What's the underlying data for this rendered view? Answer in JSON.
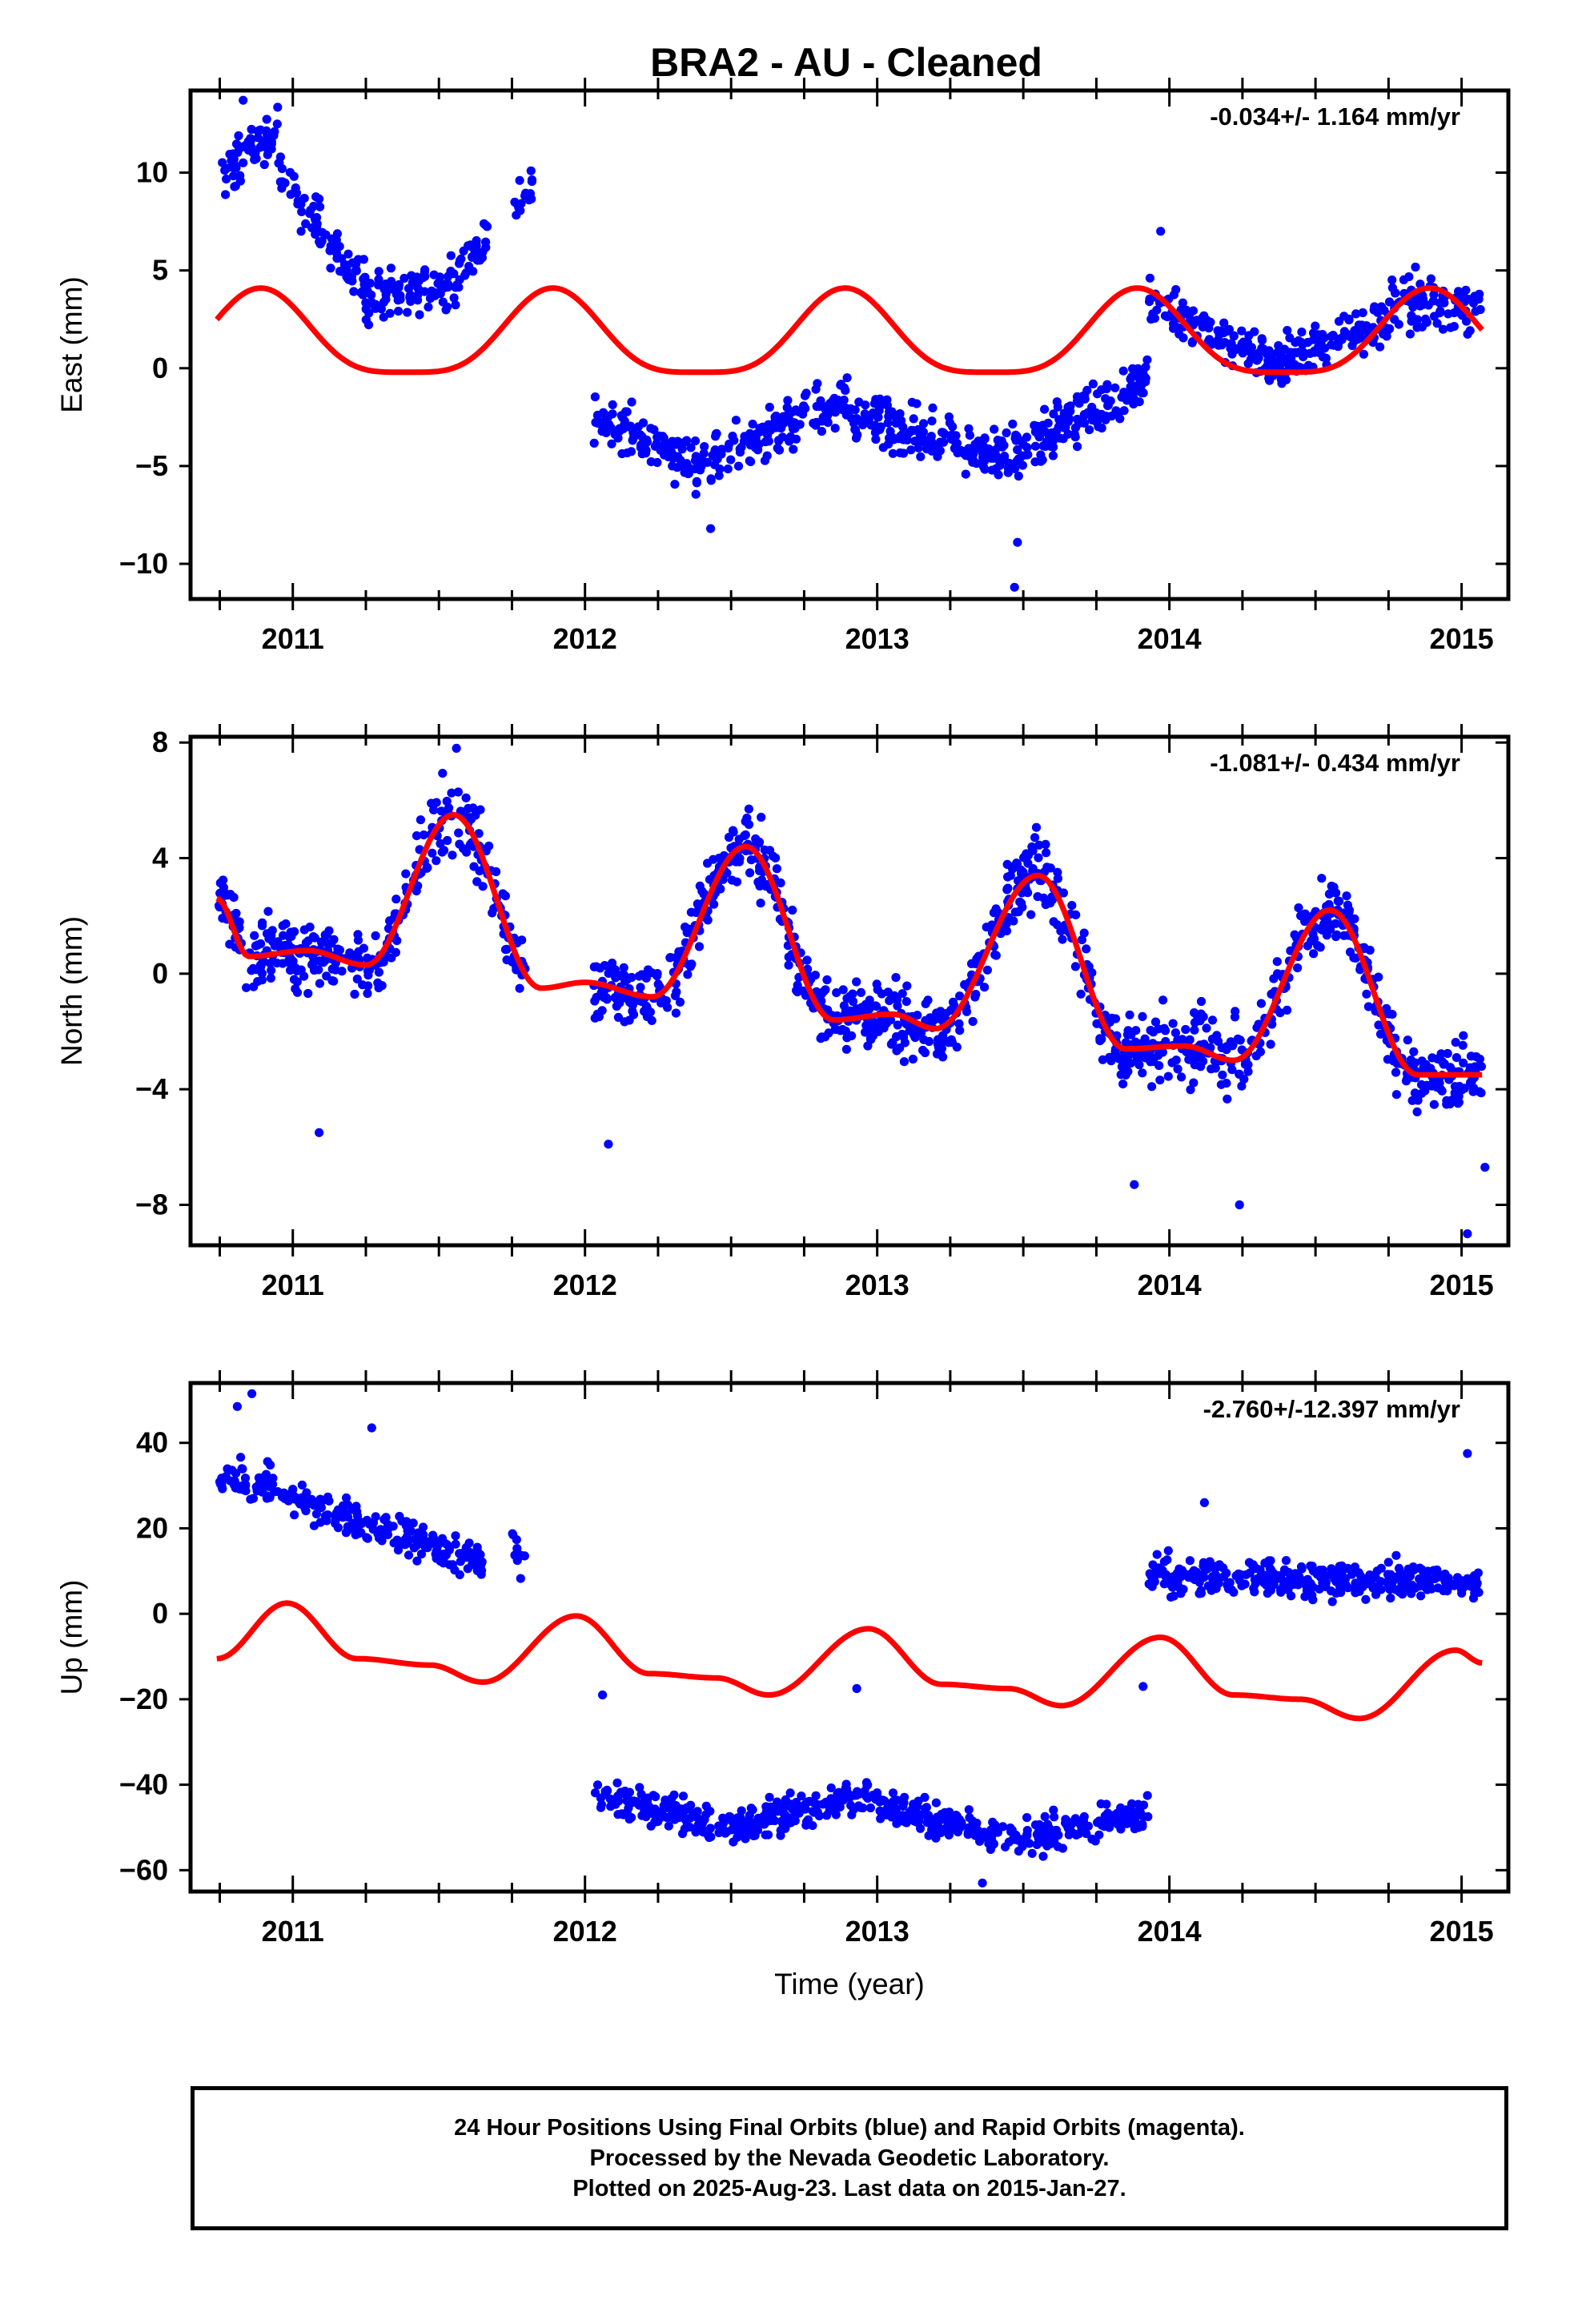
{
  "title": "BRA2  - AU - Cleaned",
  "chart_data": [
    {
      "type": "scatter",
      "panel": "east",
      "ylabel": "East (mm)",
      "xlabel": "",
      "annotation": "-0.034+/- 1.164 mm/yr",
      "xlim": [
        2010.65,
        2015.16
      ],
      "ylim": [
        -11.8,
        14.2
      ],
      "yticks": [
        -10,
        -5,
        0,
        5,
        10
      ],
      "xticks": [
        2011,
        2012,
        2013,
        2014,
        2015
      ],
      "grid": false,
      "colors": {
        "points": "#0000ff",
        "model": "#ff0000"
      },
      "model": {
        "amp1": 2.15,
        "amp2": 0.55,
        "offsets": [
          [
            2010.75,
            1.4
          ],
          [
            2011.05,
            1.4
          ],
          [
            2012.05,
            1.4
          ],
          [
            2013.05,
            1.4
          ],
          [
            2014.05,
            1.4
          ],
          [
            2015.08,
            1.4
          ]
        ]
      },
      "segments": [
        {
          "x0": 2010.75,
          "x1": 2010.95,
          "y0": 9.5,
          "y1": 12.5,
          "n": 60
        },
        {
          "x0": 2010.95,
          "x1": 2011.25,
          "y0": 10.0,
          "y1": 4.0,
          "n": 80
        },
        {
          "x0": 2011.25,
          "x1": 2011.55,
          "y0": 3.5,
          "y1": 4.5,
          "n": 80
        },
        {
          "x0": 2011.55,
          "x1": 2011.67,
          "y0": 4.5,
          "y1": 7.0,
          "n": 35
        },
        {
          "x0": 2011.75,
          "x1": 2011.82,
          "y0": 8.0,
          "y1": 9.5,
          "n": 15
        },
        {
          "x0": 2012.03,
          "x1": 2012.4,
          "y0": -2.5,
          "y1": -5.0,
          "n": 110
        },
        {
          "x0": 2012.4,
          "x1": 2012.9,
          "y0": -5.0,
          "y1": -1.5,
          "n": 150
        },
        {
          "x0": 2012.9,
          "x1": 2013.45,
          "y0": -2.5,
          "y1": -4.5,
          "n": 170
        },
        {
          "x0": 2013.45,
          "x1": 2013.93,
          "y0": -4.5,
          "y1": -0.5,
          "n": 150
        },
        {
          "x0": 2013.93,
          "x1": 2014.4,
          "y0": 3.5,
          "y1": 0.0,
          "n": 140
        },
        {
          "x0": 2014.4,
          "x1": 2014.75,
          "y0": 0.5,
          "y1": 2.5,
          "n": 110
        },
        {
          "x0": 2014.75,
          "x1": 2015.07,
          "y0": 3.5,
          "y1": 3.0,
          "n": 100
        }
      ],
      "noise": 1.05,
      "outliers": [
        [
          2013.47,
          -11.2
        ],
        [
          2013.48,
          -8.9
        ],
        [
          2012.43,
          -8.2
        ],
        [
          2013.97,
          7.0
        ],
        [
          2010.83,
          13.7
        ],
        [
          2011.03,
          8.0
        ]
      ]
    },
    {
      "type": "scatter",
      "panel": "north",
      "ylabel": "North (mm)",
      "xlabel": "",
      "annotation": "-1.081+/- 0.434 mm/yr",
      "xlim": [
        2010.65,
        2015.16
      ],
      "ylim": [
        -9.4,
        8.2
      ],
      "yticks": [
        -8,
        -4,
        0,
        4,
        8
      ],
      "xticks": [
        2011,
        2012,
        2013,
        2014,
        2015
      ],
      "grid": false,
      "colors": {
        "points": "#0000ff",
        "model": "#ff0000"
      },
      "curve_knots": [
        [
          2010.74,
          2.6
        ],
        [
          2010.85,
          0.6
        ],
        [
          2011.05,
          0.8
        ],
        [
          2011.25,
          0.3
        ],
        [
          2011.55,
          5.5
        ],
        [
          2011.85,
          -0.5
        ],
        [
          2012.0,
          -0.3
        ],
        [
          2012.23,
          -0.8
        ],
        [
          2012.55,
          4.4
        ],
        [
          2012.85,
          -1.6
        ],
        [
          2013.05,
          -1.4
        ],
        [
          2013.2,
          -1.9
        ],
        [
          2013.55,
          3.4
        ],
        [
          2013.85,
          -2.6
        ],
        [
          2014.05,
          -2.5
        ],
        [
          2014.22,
          -3.0
        ],
        [
          2014.55,
          2.2
        ],
        [
          2014.85,
          -3.5
        ],
        [
          2015.07,
          -3.5
        ]
      ],
      "model_offset": 0.0,
      "noise": 1.0,
      "ranges": [
        [
          2010.74,
          2011.8,
          330
        ],
        [
          2012.03,
          2015.07,
          1050
        ]
      ],
      "outliers": [
        [
          2011.56,
          7.8
        ],
        [
          2013.88,
          -7.3
        ],
        [
          2014.24,
          -8.0
        ],
        [
          2015.02,
          -9.0
        ],
        [
          2015.08,
          -6.7
        ],
        [
          2011.09,
          -5.5
        ],
        [
          2012.08,
          -5.9
        ]
      ]
    },
    {
      "type": "scatter",
      "panel": "up",
      "ylabel": "Up (mm)",
      "xlabel": "Time (year)",
      "annotation": "-2.760+/-12.397 mm/yr",
      "xlim": [
        2010.65,
        2015.16
      ],
      "ylim": [
        -65,
        54
      ],
      "yticks": [
        -60,
        -40,
        -20,
        0,
        20,
        40
      ],
      "xticks": [
        2011,
        2012,
        2013,
        2014,
        2015
      ],
      "grid": false,
      "colors": {
        "points": "#0000ff",
        "model": "#ff0000"
      },
      "model_knots": [
        [
          2010.74,
          -10.5
        ],
        [
          2010.98,
          2.5
        ],
        [
          2011.22,
          -10.5
        ],
        [
          2011.47,
          -12.0
        ],
        [
          2011.65,
          -16.0
        ],
        [
          2011.97,
          -0.5
        ],
        [
          2012.22,
          -14.0
        ],
        [
          2012.45,
          -15.0
        ],
        [
          2012.63,
          -19.0
        ],
        [
          2012.97,
          -3.5
        ],
        [
          2013.22,
          -16.5
        ],
        [
          2013.45,
          -17.5
        ],
        [
          2013.63,
          -21.5
        ],
        [
          2013.97,
          -5.5
        ],
        [
          2014.22,
          -19.0
        ],
        [
          2014.45,
          -20.0
        ],
        [
          2014.65,
          -24.5
        ],
        [
          2014.98,
          -8.5
        ],
        [
          2015.07,
          -11.5
        ]
      ],
      "segments": [
        {
          "x0": 2010.75,
          "x1": 2010.95,
          "y0": 31,
          "y1": 30,
          "n": 55
        },
        {
          "x0": 2010.95,
          "x1": 2011.65,
          "y0": 28,
          "y1": 12,
          "n": 190
        },
        {
          "x0": 2011.75,
          "x1": 2011.8,
          "y0": 16,
          "y1": 12,
          "n": 12
        },
        {
          "x0": 2012.03,
          "x1": 2012.5,
          "y0": -42,
          "y1": -50,
          "n": 130
        },
        {
          "x0": 2012.5,
          "x1": 2013.0,
          "y0": -50,
          "y1": -42,
          "n": 150
        },
        {
          "x0": 2013.0,
          "x1": 2013.5,
          "y0": -45,
          "y1": -53,
          "n": 150
        },
        {
          "x0": 2013.5,
          "x1": 2013.93,
          "y0": -52,
          "y1": -47,
          "n": 130
        },
        {
          "x0": 2013.93,
          "x1": 2015.07,
          "y0": 9,
          "y1": 7,
          "n": 340
        }
      ],
      "noise": 3.4,
      "outliers": [
        [
          2010.86,
          51.5
        ],
        [
          2010.81,
          48.5
        ],
        [
          2011.27,
          43.5
        ],
        [
          2012.06,
          -19.0
        ],
        [
          2012.93,
          -17.5
        ],
        [
          2013.36,
          -63.0
        ],
        [
          2015.02,
          37.5
        ],
        [
          2014.12,
          26.0
        ],
        [
          2013.91,
          -17.0
        ]
      ]
    }
  ],
  "footer": {
    "line1": "24 Hour Positions Using Final Orbits (blue) and Rapid Orbits (magenta).",
    "line2": "Processed by the Nevada Geodetic Laboratory.",
    "line3": "Plotted on 2025-Aug-23. Last data on 2015-Jan-27."
  }
}
